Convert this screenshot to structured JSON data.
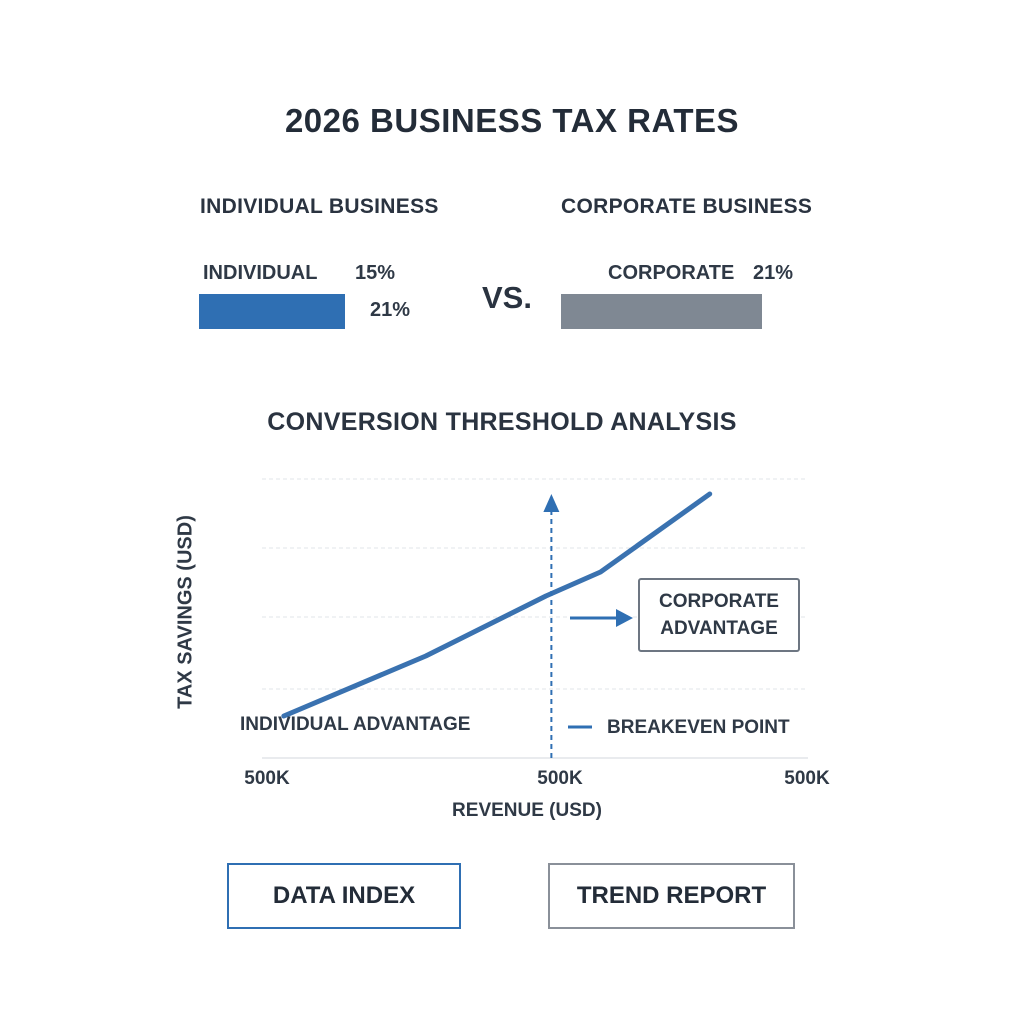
{
  "title": "2026 BUSINESS TAX RATES",
  "comparison": {
    "individual": {
      "heading": "INDIVIDUAL BUSINESS",
      "label": "INDIVIDUAL",
      "rate_label": "15%",
      "secondary_rate_label": "21%",
      "color": "#2f6fb3"
    },
    "vs_label": "VS.",
    "corporate": {
      "heading": "CORPORATE BUSINESS",
      "label": "CORPORATE",
      "rate_label": "21%",
      "color": "#7f8893"
    }
  },
  "chart_data": {
    "type": "line",
    "title": "CONVERSION THRESHOLD ANALYSIS",
    "xlabel": "REVENUE (USD)",
    "ylabel": "TAX SAVINGS (USD)",
    "x_tick_labels": [
      "500K",
      "500K",
      "500K"
    ],
    "x_range": [
      0,
      100
    ],
    "ylim": [
      0,
      100
    ],
    "grid": true,
    "series": [
      {
        "name": "Tax savings",
        "color": "#3a72b0",
        "points": [
          {
            "x": 4,
            "y": 14
          },
          {
            "x": 30,
            "y": 34
          },
          {
            "x": 52,
            "y": 54
          },
          {
            "x": 62,
            "y": 62
          },
          {
            "x": 82,
            "y": 88
          }
        ]
      }
    ],
    "breakeven_x": 53,
    "annotations": {
      "left_region": "INDIVIDUAL ADVANTAGE",
      "right_region": "CORPORATE ADVANTAGE",
      "breakeven": "BREAKEVEN POINT"
    }
  },
  "buttons": {
    "data_index": "DATA INDEX",
    "trend_report": "TREND REPORT"
  }
}
